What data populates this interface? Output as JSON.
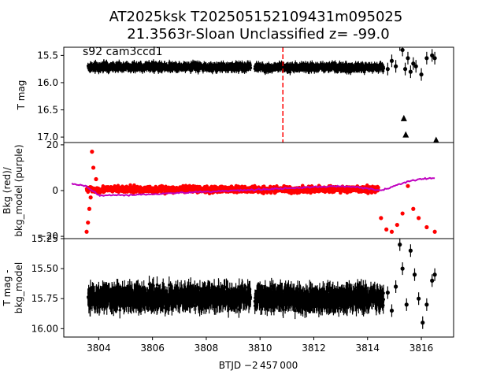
{
  "figure": {
    "title_line1": "AT2025ksk  T202505152109431m095025",
    "title_line2": "21.3563r-Sloan Unclassified z= -99.0",
    "xlabel": "BTJD −2 457 000"
  },
  "chart_data": [
    {
      "type": "scatter",
      "panel": "top",
      "ylabel": "T mag",
      "annotation": "s92 cam3ccd1",
      "y_inverted": true,
      "xlim": [
        3802.7,
        3817.2
      ],
      "ylim": [
        17.1,
        15.35
      ],
      "x_ticks": [],
      "y_ticks": [
        15.5,
        16.0,
        16.5,
        17.0
      ],
      "y_tick_labels": [
        "15.5",
        "16.0",
        "16.5",
        "17.0"
      ],
      "vline": {
        "x": 3810.85,
        "color": "#ff0000",
        "style": "dashed"
      },
      "series": [
        {
          "kind": "band",
          "color": "#000000",
          "x_start": 3803.6,
          "x_end": 3809.65,
          "y_center": 15.71,
          "spread": 0.16
        },
        {
          "kind": "band",
          "color": "#000000",
          "x_start": 3809.8,
          "x_end": 3814.6,
          "y_center": 15.72,
          "spread": 0.16
        },
        {
          "kind": "points",
          "color": "#000000",
          "x": [
            3814.75,
            3814.9,
            3815.05,
            3815.2,
            3815.3,
            3815.4,
            3815.5,
            3815.6,
            3815.7,
            3815.8,
            3816.0,
            3816.2,
            3816.4,
            3816.5
          ],
          "y": [
            15.75,
            15.6,
            15.7,
            15.3,
            15.4,
            15.75,
            15.55,
            15.8,
            15.65,
            15.7,
            15.85,
            15.55,
            15.5,
            15.55
          ]
        },
        {
          "kind": "upper_limits",
          "color": "#000000",
          "x": [
            3815.35,
            3815.42,
            3816.55
          ],
          "y": [
            16.65,
            16.95,
            17.05
          ]
        }
      ]
    },
    {
      "type": "scatter",
      "panel": "middle",
      "ylabel": "Bkg (red)/\nbkg_model (purple)",
      "xlim": [
        3802.7,
        3817.2
      ],
      "ylim": [
        -21,
        21
      ],
      "x_ticks": [],
      "y_ticks": [
        -20,
        0,
        20
      ],
      "y_tick_labels": [
        "−20",
        "0",
        "20"
      ],
      "series": [
        {
          "name": "",
          "kind": "band",
          "color": "#ff0000",
          "x_start": 3803.55,
          "x_end": 3814.4,
          "y_center": 0.5,
          "spread": 3.5
        },
        {
          "kind": "points",
          "color": "#ff0000",
          "x": [
            3803.55,
            3803.6,
            3803.65,
            3803.7,
            3803.75,
            3803.8,
            3803.9,
            3814.5,
            3814.7,
            3814.9,
            3815.1,
            3815.3,
            3815.5,
            3815.7,
            3815.9,
            3816.2,
            3816.5
          ],
          "y": [
            -18,
            -14,
            -8,
            -3,
            17,
            10,
            5,
            -12,
            -17,
            -18,
            -15,
            -10,
            2,
            -8,
            -12,
            -16,
            -18
          ]
        },
        {
          "name": "",
          "kind": "line",
          "color": "#bf00bf",
          "x": [
            3803.0,
            3803.5,
            3804.0,
            3805.0,
            3806.0,
            3807.0,
            3808.0,
            3809.0,
            3810.0,
            3811.0,
            3812.0,
            3813.0,
            3814.0,
            3814.5,
            3815.0,
            3815.5,
            3816.0,
            3816.5
          ],
          "y": [
            3,
            2,
            -2,
            -2,
            -1.5,
            -1,
            -0.5,
            0,
            0.5,
            1,
            1.5,
            2,
            1,
            0,
            2,
            4,
            5,
            5.5
          ]
        }
      ]
    },
    {
      "type": "scatter",
      "panel": "bottom",
      "ylabel": "T mag -\nbkg_model",
      "y_inverted": true,
      "xlim": [
        3802.7,
        3817.2
      ],
      "ylim": [
        16.07,
        15.25
      ],
      "x_ticks": [
        3804,
        3806,
        3808,
        3810,
        3812,
        3814,
        3816
      ],
      "x_tick_labels": [
        "3804",
        "3806",
        "3808",
        "3810",
        "3812",
        "3814",
        "3816"
      ],
      "y_ticks": [
        15.25,
        15.5,
        15.75,
        16.0
      ],
      "y_tick_labels": [
        "15.25",
        "15.50",
        "15.75",
        "16.00"
      ],
      "series": [
        {
          "kind": "band",
          "color": "#000000",
          "x_start": 3803.6,
          "x_end": 3809.65,
          "y_center": 15.74,
          "spread": 0.2
        },
        {
          "kind": "band",
          "color": "#000000",
          "x_start": 3809.8,
          "x_end": 3814.6,
          "y_center": 15.75,
          "spread": 0.2
        },
        {
          "kind": "points",
          "color": "#000000",
          "x": [
            3814.75,
            3814.9,
            3815.05,
            3815.2,
            3815.3,
            3815.45,
            3815.6,
            3815.75,
            3815.9,
            3816.05,
            3816.2,
            3816.4,
            3816.5
          ],
          "y": [
            15.7,
            15.85,
            15.65,
            15.3,
            15.5,
            15.8,
            15.35,
            15.55,
            15.75,
            15.95,
            15.8,
            15.6,
            15.55
          ]
        }
      ]
    }
  ]
}
